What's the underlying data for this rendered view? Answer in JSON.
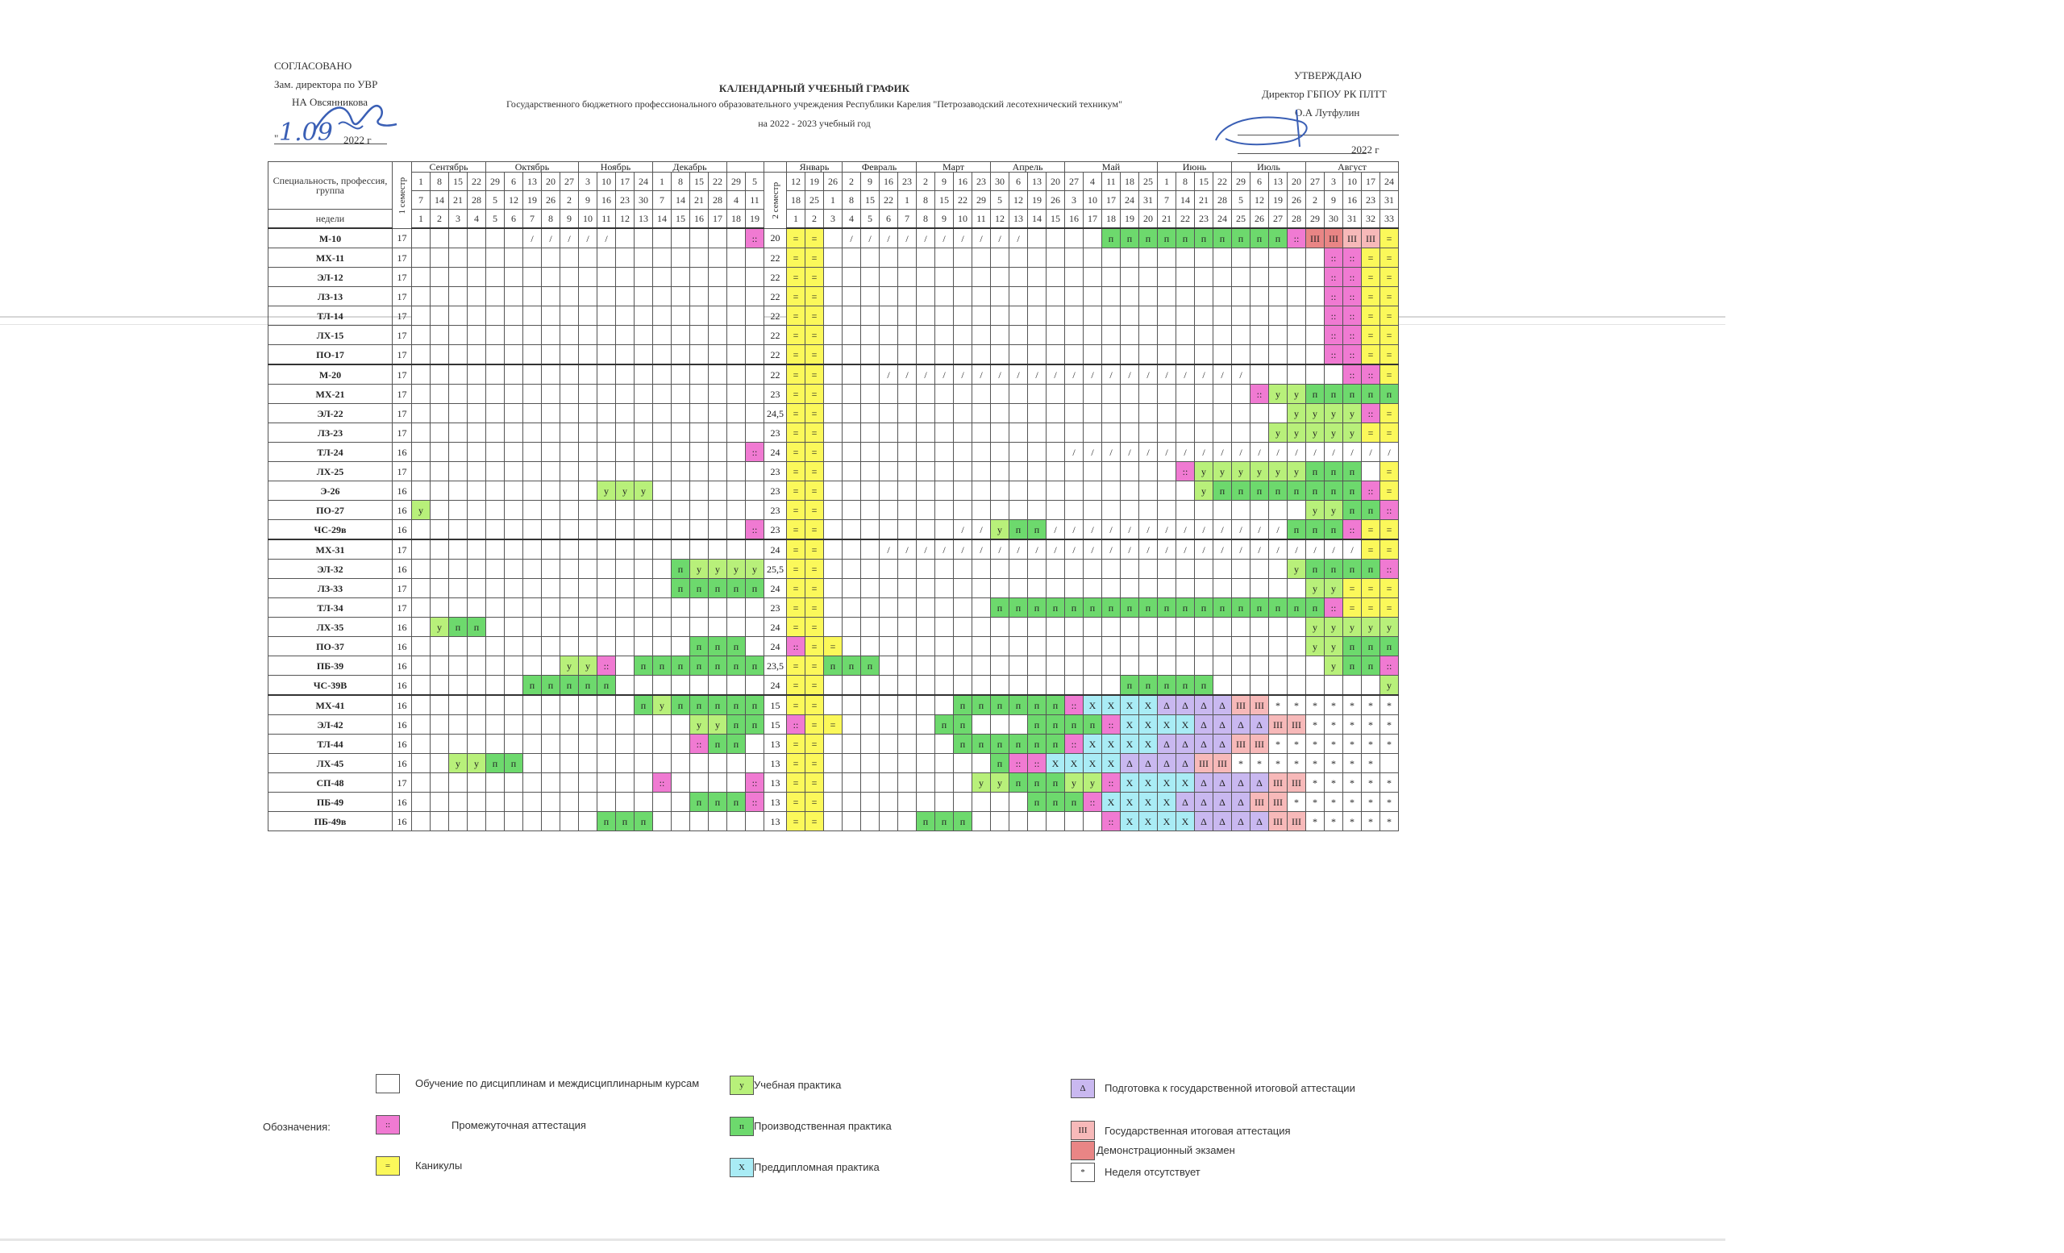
{
  "header": {
    "left": {
      "agreed": "СОГЛАСОВАНО",
      "position": "Зам. директора по УВР",
      "name": "НА Овсянникова",
      "date_prefix": "\"",
      "date_handwritten": "1.09",
      "date_suffix": "2022 г"
    },
    "center": {
      "title": "КАЛЕНДАРНЫЙ УЧЕБНЫЙ ГРАФИК",
      "org": "Государственного бюджетного профессионального образовательного учреждения Республики Карелия \"Петрозаводский лесотехнический техникум\"",
      "year": "на 2022 - 2023 учебный год"
    },
    "right": {
      "approve": "УТВЕРЖДАЮ",
      "position": "Директор ГБПОУ РК ПЛТТ",
      "name": "О.А Лутфулин",
      "date_suffix": "2022 г"
    }
  },
  "table": {
    "corner_label": "Специальность, профессия, группа",
    "weeks_label": "недели",
    "sem1_label": "1 семестр",
    "sem2_label": "2 семестр",
    "months": [
      {
        "name": "Сентябрь",
        "span": 4
      },
      {
        "name": "Октябрь",
        "span": 5
      },
      {
        "name": "Ноябрь",
        "span": 4
      },
      {
        "name": "Декабрь",
        "span": 4
      },
      {
        "name": "",
        "span": 2
      },
      {
        "name": "",
        "span": 1
      },
      {
        "name": "Январь",
        "span": 3
      },
      {
        "name": "Февраль",
        "span": 4
      },
      {
        "name": "Март",
        "span": 4
      },
      {
        "name": "Апрель",
        "span": 4
      },
      {
        "name": "Май",
        "span": 5
      },
      {
        "name": "Июнь",
        "span": 4
      },
      {
        "name": "Июль",
        "span": 4
      },
      {
        "name": "Август",
        "span": 5
      }
    ],
    "row_start": [
      "1",
      "8",
      "15",
      "22",
      "29",
      "6",
      "13",
      "20",
      "27",
      "3",
      "10",
      "17",
      "24",
      "1",
      "8",
      "15",
      "22",
      "29",
      "5",
      "",
      "12",
      "19",
      "26",
      "2",
      "9",
      "16",
      "23",
      "2",
      "9",
      "16",
      "23",
      "30",
      "6",
      "13",
      "20",
      "27",
      "4",
      "11",
      "18",
      "25",
      "1",
      "8",
      "15",
      "22",
      "29",
      "6",
      "13",
      "20",
      "27",
      "3",
      "10",
      "17",
      "24"
    ],
    "row_end": [
      "7",
      "14",
      "21",
      "28",
      "5",
      "12",
      "19",
      "26",
      "2",
      "9",
      "16",
      "23",
      "30",
      "7",
      "14",
      "21",
      "28",
      "4",
      "11",
      "",
      "18",
      "25",
      "1",
      "8",
      "15",
      "22",
      "1",
      "8",
      "15",
      "22",
      "29",
      "5",
      "12",
      "19",
      "26",
      "3",
      "10",
      "17",
      "24",
      "31",
      "7",
      "14",
      "21",
      "28",
      "5",
      "12",
      "19",
      "26",
      "2",
      "9",
      "16",
      "23",
      "31"
    ],
    "row_week": [
      "1",
      "2",
      "3",
      "4",
      "5",
      "6",
      "7",
      "8",
      "9",
      "10",
      "11",
      "12",
      "13",
      "14",
      "15",
      "16",
      "17",
      "18",
      "19",
      "",
      "1",
      "2",
      "3",
      "4",
      "5",
      "6",
      "7",
      "8",
      "9",
      "10",
      "11",
      "12",
      "13",
      "14",
      "15",
      "16",
      "17",
      "18",
      "19",
      "20",
      "21",
      "22",
      "23",
      "24",
      "25",
      "26",
      "27",
      "28",
      "29",
      "30",
      "31",
      "32",
      "33"
    ],
    "groups": [
      {
        "name": "М-10",
        "s1": "17",
        "s2": "20",
        "cells": "....../////.......p==.//////////....nnnnnnnnnnpEEGG=========="
      },
      {
        "name": "МХ-11",
        "s1": "17",
        "s2": "22",
        "cells": "...................==...........................pp=========="
      },
      {
        "name": "ЭЛ-12",
        "s1": "17",
        "s2": "22",
        "cells": "...................==...........................pp=========="
      },
      {
        "name": "ЛЗ-13",
        "s1": "17",
        "s2": "22",
        "cells": "...................==...........................pp=========="
      },
      {
        "name": "ТЛ-14",
        "s1": "17",
        "s2": "22",
        "cells": "...................==...........................pp=========="
      },
      {
        "name": "ЛХ-15",
        "s1": "17",
        "s2": "22",
        "cells": "...................==...........................pp=========="
      },
      {
        "name": "ПО-17",
        "s1": "17",
        "s2": "22",
        "cells": "...................==...........................pp=========="
      },
      {
        "name": "М-20",
        "s1": "17",
        "s2": "22",
        "cells": "...................==...////////////////////.....pp=========="
      },
      {
        "name": "МХ-21",
        "s1": "17",
        "s2": "23",
        "cells": "...................==.......................puunnnnn=========="
      },
      {
        "name": "ЭЛ-22",
        "s1": "17",
        "s2": "24,5",
        "cells": "...................==.........................uuuup=========="
      },
      {
        "name": "ЛЗ-23",
        "s1": "17",
        "s2": "23",
        "cells": "...................==........................uuuuu=========="
      },
      {
        "name": "ТЛ-24",
        "s1": "16",
        "s2": "24",
        "cells": "..................p==.............//////////////////=========="
      },
      {
        "name": "ЛХ-25",
        "s1": "17",
        "s2": "23",
        "cells": "...................==...................puuuuuunnn.=========="
      },
      {
        "name": "Э-26",
        "s1": "16",
        "s2": "23",
        "cells": "..........uuu......==....................unnnnnnnnp=========="
      },
      {
        "name": "ПО-27",
        "s1": "16",
        "s2": "23",
        "cells": "u..................==..........................uunnp=========="
      },
      {
        "name": "ЧС-29в",
        "s1": "16",
        "s2": "23",
        "cells": "..................p==.......//unn/////////////nnnp=========="
      },
      {
        "name": "МХ-31",
        "s1": "17",
        "s2": "24",
        "cells": "...................==...//////////////////////////=========="
      },
      {
        "name": "ЭЛ-32",
        "s1": "16",
        "s2": "25,5",
        "cells": "..............nuuuu==.........................unnnnp=========="
      },
      {
        "name": "ЛЗ-33",
        "s1": "17",
        "s2": "24",
        "cells": "..............nnnnn==..........................uu=========="
      },
      {
        "name": "ТЛ-34",
        "s1": "17",
        "s2": "23",
        "cells": "...................==.........nnnnnnnnnnnnnnnnnnp=========="
      },
      {
        "name": "ЛХ-35",
        "s1": "16",
        "s2": "24",
        "cells": ".unn...............==..........................uuuuuunnn=========="
      },
      {
        "name": "ПО-37",
        "s1": "16",
        "s2": "24",
        "cells": "...............nnn.p==.........................uunnnp=========="
      },
      {
        "name": "ПБ-39",
        "s1": "16",
        "s2": "23,5",
        "cells": "........uup.nnnnnnn==nnn........................unnp=========="
      },
      {
        "name": "ЧС-39В",
        "s1": "16",
        "s2": "24",
        "cells": "......nnnnn........==................nnnnn.........u=========="
      },
      {
        "name": "МХ-41",
        "s1": "16",
        "s2": "15",
        "cells": "............nunnnnn==.......nnnnnnpXXXXddddGG********"
      },
      {
        "name": "ЭЛ-42",
        "s1": "16",
        "s2": "15",
        "cells": "...............uunnp==.....nn...nnnnpXXXXddddGG********"
      },
      {
        "name": "ТЛ-44",
        "s1": "16",
        "s2": "13",
        "cells": "...............pnn.==.......nnnnnnpXXXXddddGG********"
      },
      {
        "name": "ЛХ-45",
        "s1": "16",
        "s2": "13",
        "cells": "..uunn.............==.........nppXXXXddddGG********"
      },
      {
        "name": "СП-48",
        "s1": "17",
        "s2": "13",
        "cells": ".............p....p==........uunnnuupXXXXddddGG********"
      },
      {
        "name": "ПБ-49",
        "s1": "16",
        "s2": "13",
        "cells": "...............nnnp==...........nnnpXXXXddddGG********"
      },
      {
        "name": "ПБ-49в",
        "s1": "16",
        "s2": "13",
        "cells": "..........nnn......==.....nnn.......pXXXXddddGG********"
      }
    ]
  },
  "legend": {
    "title": "Обозначения:",
    "items": [
      {
        "code": "",
        "label": "Обучение по дисциплинам и междисциплинарным курсам"
      },
      {
        "code": "::",
        "label": "Промежуточная аттестация"
      },
      {
        "code": "=",
        "label": "Каникулы"
      },
      {
        "code": "у",
        "label": "Учебная практика"
      },
      {
        "code": "п",
        "label": "Производственная практика"
      },
      {
        "code": "X",
        "label": "Преддипломная практика"
      },
      {
        "code": "Δ",
        "label": "Подготовка к государственной итоговой аттестации"
      },
      {
        "code": "III",
        "label": "Государственная итоговая аттестация"
      },
      {
        "code": "",
        "label": "Демонстрационный экзамен"
      },
      {
        "code": "*",
        "label": "Неделя отсутствует"
      }
    ]
  },
  "colors": {
    "study": "#ffffff",
    "practice_prod": "#6dd96d",
    "practice_edu": "#b8f07a",
    "attestation": "#f07ad2",
    "holiday": "#fbf85a",
    "gia_prep": "#c9b8f0",
    "gia": "#f7b9b9",
    "demo_exam": "#e98585",
    "prediploma": "#a9ecf5"
  }
}
